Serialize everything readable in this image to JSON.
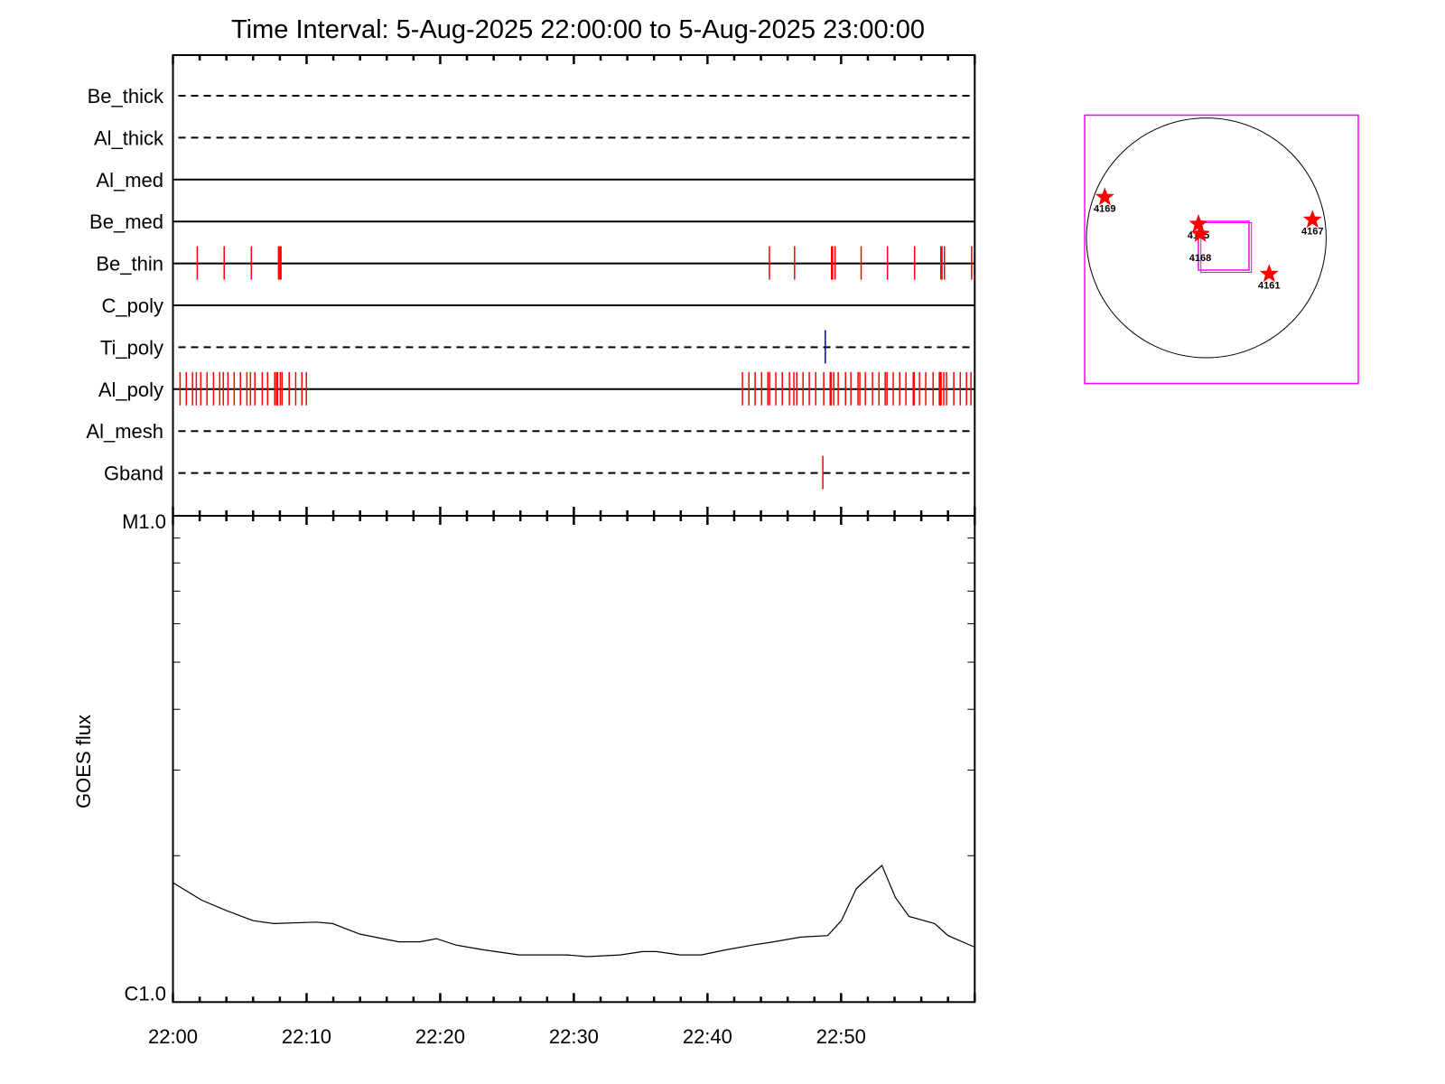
{
  "chart_data": [
    {
      "type": "timeline",
      "title": "Time Interval:  5-Aug-2025 22:00:00 to  5-Aug-2025 23:00:00",
      "xlim": [
        "22:00:00",
        "23:00:00"
      ],
      "rows": [
        {
          "name": "Be_thick",
          "line": "dashed",
          "events": []
        },
        {
          "name": "Al_thick",
          "line": "dashed",
          "events": []
        },
        {
          "name": "Al_med",
          "line": "solid",
          "events": []
        },
        {
          "name": "Be_med",
          "line": "solid",
          "events": []
        },
        {
          "name": "Be_thin",
          "line": "solid",
          "events": [
            "22:01:49",
            "22:03:50",
            "22:05:52",
            "22:07:54",
            "22:08:00",
            "22:08:05",
            "22:44:38",
            "22:46:31",
            "22:49:17",
            "22:49:22",
            "22:49:33",
            "22:51:30",
            "22:53:28",
            "22:55:30",
            "22:57:28",
            "22:57:33",
            "22:57:44",
            "22:59:46"
          ]
        },
        {
          "name": "C_poly",
          "line": "solid",
          "events": []
        },
        {
          "name": "Ti_poly",
          "line": "dashed",
          "events": [
            "22:48:49"
          ],
          "event_color": "#0000cc"
        },
        {
          "name": "Al_poly",
          "line": "solid",
          "events": [
            "22:00:32",
            "22:01:00",
            "22:01:28",
            "22:01:45",
            "22:02:05",
            "22:02:33",
            "22:03:02",
            "22:03:30",
            "22:03:46",
            "22:04:07",
            "22:04:35",
            "22:05:03",
            "22:05:32",
            "22:05:48",
            "22:06:08",
            "22:06:41",
            "22:07:05",
            "22:07:37",
            "22:07:45",
            "22:07:50",
            "22:08:02",
            "22:08:10",
            "22:08:42",
            "22:09:11",
            "22:09:39",
            "22:09:59",
            "22:42:37",
            "22:43:06",
            "22:43:34",
            "22:44:03",
            "22:44:31",
            "22:44:39",
            "22:45:07",
            "22:45:36",
            "22:46:08",
            "22:46:28",
            "22:46:41",
            "22:47:09",
            "22:47:37",
            "22:48:06",
            "22:48:42",
            "22:49:11",
            "22:49:15",
            "22:49:27",
            "22:49:47",
            "22:50:20",
            "22:50:44",
            "22:51:16",
            "22:51:24",
            "22:51:49",
            "22:52:21",
            "22:52:50",
            "22:53:18",
            "22:53:26",
            "22:53:54",
            "22:54:23",
            "22:54:51",
            "22:55:24",
            "22:55:28",
            "22:55:52",
            "22:56:20",
            "22:56:53",
            "22:57:21",
            "22:57:25",
            "22:57:29",
            "22:57:41",
            "22:57:53",
            "22:58:26",
            "22:58:55",
            "22:59:23",
            "22:59:43"
          ]
        },
        {
          "name": "Al_mesh",
          "line": "dashed",
          "events": []
        },
        {
          "name": "Gband",
          "line": "dashed",
          "events": [
            "22:48:38"
          ]
        }
      ],
      "event_color": "#ff0000"
    },
    {
      "type": "line",
      "ylabel": "GOES flux",
      "yscale": "log",
      "ylim": [
        1e-06,
        1e-05
      ],
      "ytick_labels": [
        {
          "value": 1e-05,
          "label": "M1.0"
        },
        {
          "value": 1e-06,
          "label": "C1.0"
        }
      ],
      "xtick_labels": [
        "22:00",
        "22:10",
        "22:20",
        "22:30",
        "22:40",
        "22:50"
      ],
      "xlim": [
        "22:00:00",
        "23:00:00"
      ],
      "series": [
        {
          "x": [
            "22:00:00",
            "22:02:09",
            "22:04:04",
            "22:06:00",
            "22:07:33",
            "22:10:43",
            "22:11:57",
            "22:13:58",
            "22:16:54",
            "22:18:29",
            "22:19:43",
            "22:21:11",
            "22:23:19",
            "22:25:55",
            "22:26:35",
            "22:29:31",
            "22:30:59",
            "22:33:28",
            "22:35:09",
            "22:36:10",
            "22:37:58",
            "22:39:32",
            "22:41:20",
            "22:43:22",
            "22:44:57",
            "22:46:58",
            "22:49:00",
            "22:50:01",
            "22:51:08",
            "22:51:49",
            "22:53:03",
            "22:54:04",
            "22:55:05",
            "22:57:00",
            "22:58:00",
            "22:59:55"
          ],
          "y": [
            1.76e-06,
            1.62e-06,
            1.54e-06,
            1.47e-06,
            1.45e-06,
            1.46e-06,
            1.45e-06,
            1.38e-06,
            1.33e-06,
            1.33e-06,
            1.35e-06,
            1.31e-06,
            1.28e-06,
            1.25e-06,
            1.25e-06,
            1.25e-06,
            1.24e-06,
            1.25e-06,
            1.27e-06,
            1.27e-06,
            1.25e-06,
            1.25e-06,
            1.28e-06,
            1.31e-06,
            1.33e-06,
            1.36e-06,
            1.37e-06,
            1.47e-06,
            1.71e-06,
            1.78e-06,
            1.91e-06,
            1.64e-06,
            1.5e-06,
            1.45e-06,
            1.37e-06,
            1.3e-06
          ]
        }
      ]
    }
  ],
  "sun_map": {
    "box_color": "#ff00ff",
    "star_color": "#ff0000",
    "regions": [
      {
        "label": "4169"
      },
      {
        "label": "4165"
      },
      {
        "label": "4168"
      },
      {
        "label": "4167"
      },
      {
        "label": "4161"
      }
    ]
  }
}
